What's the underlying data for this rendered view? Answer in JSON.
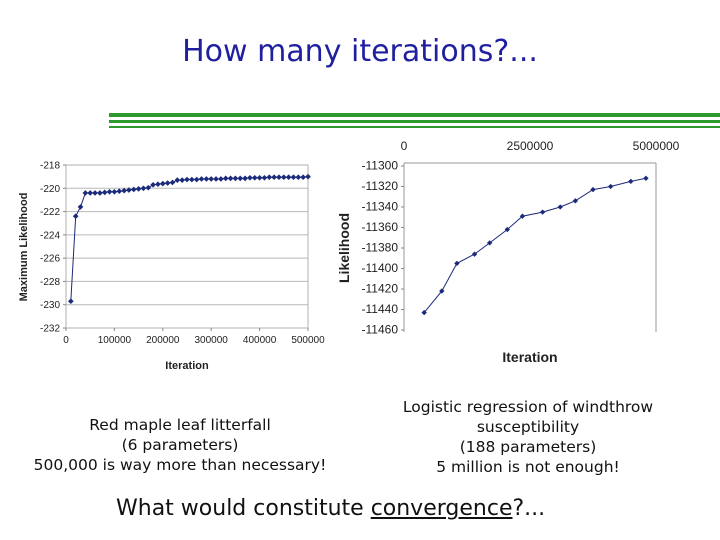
{
  "slide": {
    "title": "How many iterations?...",
    "question_pre": "What would constitute ",
    "question_term": "convergence",
    "question_post": "?...",
    "accent_color": "#2e9a2e",
    "title_color": "#1f1f9f"
  },
  "captions": {
    "left": [
      "Red maple leaf litterfall",
      "(6 parameters)",
      "500,000 is way more than necessary!"
    ],
    "right": [
      "Logistic regression of windthrow",
      "susceptibility",
      "(188 parameters)",
      "5 million is not enough!"
    ]
  },
  "chart_data": [
    {
      "type": "line",
      "xlabel": "Iteration",
      "ylabel": "Maximum Likelihood",
      "xlim": [
        0,
        500000
      ],
      "ylim": [
        -232,
        -218
      ],
      "xticks": [
        0,
        100000,
        200000,
        300000,
        400000,
        500000
      ],
      "yticks": [
        -218,
        -220,
        -222,
        -224,
        -226,
        -228,
        -230,
        -232
      ],
      "grid": "horizontal",
      "color": "#1b2a7a",
      "series": [
        {
          "x": [
            10000,
            20000,
            30000,
            40000,
            50000,
            60000,
            70000,
            80000,
            90000,
            100000,
            110000,
            120000,
            130000,
            140000,
            150000,
            160000,
            170000,
            180000,
            190000,
            200000,
            210000,
            220000,
            230000,
            240000,
            250000,
            260000,
            270000,
            280000,
            290000,
            300000,
            310000,
            320000,
            330000,
            340000,
            350000,
            360000,
            370000,
            380000,
            390000,
            400000,
            410000,
            420000,
            430000,
            440000,
            450000,
            460000,
            470000,
            480000,
            490000,
            500000
          ],
          "y": [
            -229.7,
            -222.4,
            -221.6,
            -220.4,
            -220.4,
            -220.4,
            -220.4,
            -220.35,
            -220.3,
            -220.3,
            -220.25,
            -220.2,
            -220.15,
            -220.1,
            -220.05,
            -220.0,
            -219.95,
            -219.7,
            -219.65,
            -219.6,
            -219.55,
            -219.5,
            -219.3,
            -219.3,
            -219.25,
            -219.25,
            -219.25,
            -219.2,
            -219.2,
            -219.2,
            -219.2,
            -219.2,
            -219.15,
            -219.15,
            -219.15,
            -219.15,
            -219.15,
            -219.1,
            -219.1,
            -219.1,
            -219.1,
            -219.05,
            -219.05,
            -219.05,
            -219.05,
            -219.05,
            -219.05,
            -219.05,
            -219.05,
            -219.0
          ]
        }
      ]
    },
    {
      "type": "line",
      "xlabel": "Iteration",
      "ylabel": "Likelihood",
      "xlim": [
        0,
        5000000
      ],
      "ylim": [
        -11460,
        -11300
      ],
      "xticks": [
        0,
        2500000,
        5000000
      ],
      "xtick_position": "top",
      "yticks": [
        -11300,
        -11320,
        -11340,
        -11360,
        -11380,
        -11400,
        -11420,
        -11440,
        -11460
      ],
      "grid": "none",
      "color": "#1b2a7a",
      "series": [
        {
          "x": [
            400000,
            750000,
            1050000,
            1400000,
            1700000,
            2050000,
            2350000,
            2750000,
            3100000,
            3400000,
            3750000,
            4100000,
            4500000,
            4800000
          ],
          "y": [
            -11443,
            -11422,
            -11395,
            -11386,
            -11375,
            -11362,
            -11349,
            -11345,
            -11340,
            -11334,
            -11323,
            -11320,
            -11315,
            -11312
          ]
        }
      ]
    }
  ]
}
